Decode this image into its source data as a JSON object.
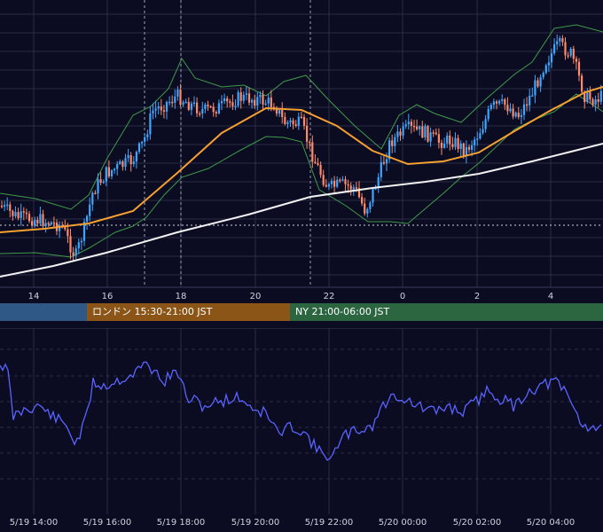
{
  "colors": {
    "background": "#0b0c22",
    "grid": "#2a2d45",
    "candle_up": "#3fa6ff",
    "candle_down": "#ff8a6a",
    "ma_fast": "#f5a030",
    "ma_slow": "#f2f2f2",
    "bollinger": "#3f9a4a",
    "oscillator": "#5a63ff",
    "session_tokyo": "#2f5886",
    "session_london": "#8a5516",
    "session_ny": "#2b6641"
  },
  "price_axis": {
    "day_labels": [
      "14",
      "16",
      "18",
      "20",
      "22",
      "0",
      "2",
      "4"
    ]
  },
  "sessions": {
    "tokyo": "",
    "london": "ロンドン 15:30-21:00 JST",
    "ny": "NY 21:00-06:00 JST"
  },
  "time_axis": {
    "labels": [
      "5/19 14:00",
      "5/19 16:00",
      "5/19 18:00",
      "5/19 20:00",
      "5/19 22:00",
      "5/20 00:00",
      "5/20 02:00",
      "5/20 04:00"
    ]
  }
}
